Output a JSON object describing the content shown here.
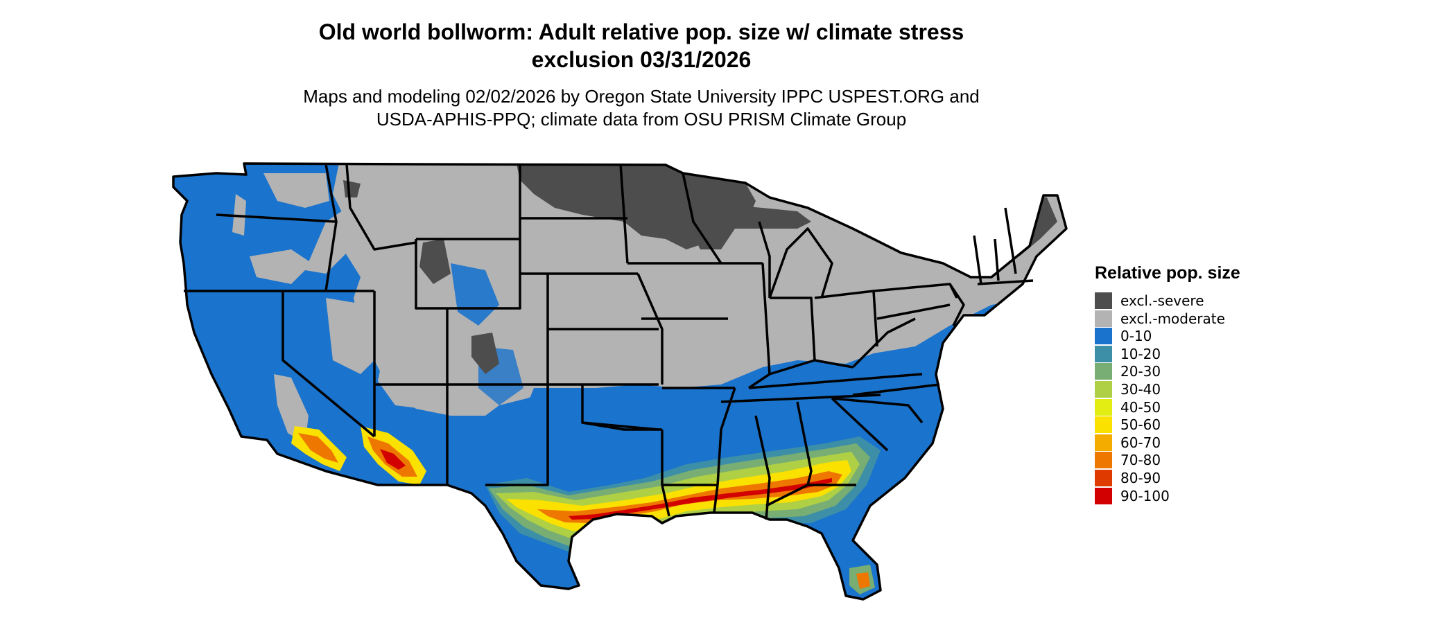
{
  "title_line1": "Old world bollworm: Adult relative pop. size w/ climate stress",
  "title_line2": "exclusion 03/31/2026",
  "subtitle_line1": "Maps and modeling 02/02/2026 by Oregon State University IPPC USPEST.ORG and",
  "subtitle_line2": "USDA-APHIS-PPQ; climate data from OSU PRISM Climate Group",
  "legend": {
    "title": "Relative pop. size",
    "items": [
      {
        "label": "excl.-severe",
        "color": "#4d4d4d"
      },
      {
        "label": "excl.-moderate",
        "color": "#b3b3b3"
      },
      {
        "label": "0-10",
        "color": "#1a73cc"
      },
      {
        "label": "10-20",
        "color": "#3d8fa8"
      },
      {
        "label": "20-30",
        "color": "#78ad73"
      },
      {
        "label": "30-40",
        "color": "#afd045"
      },
      {
        "label": "40-50",
        "color": "#e3ec13"
      },
      {
        "label": "50-60",
        "color": "#fae100"
      },
      {
        "label": "60-70",
        "color": "#f5ac00"
      },
      {
        "label": "70-80",
        "color": "#ee7700"
      },
      {
        "label": "80-90",
        "color": "#df3a00"
      },
      {
        "label": "90-100",
        "color": "#d20000"
      }
    ]
  },
  "map_colors": {
    "border": "#000000",
    "severe": "#4d4d4d",
    "moderate": "#b3b3b3",
    "low": "#1a73cc",
    "band_teal": "#3d8fa8",
    "band_green": "#78ad73",
    "band_lime": "#afd045",
    "band_yellow": "#fae100",
    "band_orange": "#ee7700",
    "band_red": "#d20000"
  }
}
